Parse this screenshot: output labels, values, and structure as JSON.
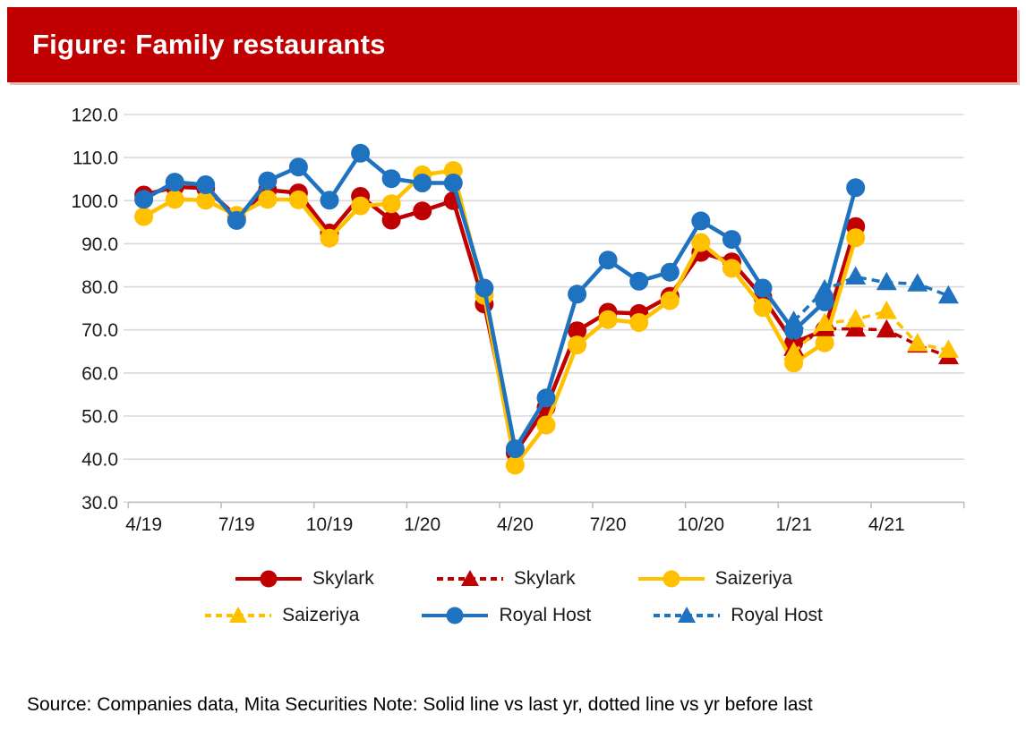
{
  "header": {
    "title": "Figure: Family restaurants"
  },
  "footer": {
    "source_note": "Source: Companies data, Mita Securities Note: Solid line vs last yr, dotted line vs yr before last"
  },
  "colors": {
    "banner_red": "#c00000",
    "skylark_red": "#c00000",
    "saizeriya_yellow": "#ffc000",
    "royal_host_blue": "#1f72bf",
    "gridline": "#d9d9d9",
    "axis": "#bfbfbf"
  },
  "chart_data": {
    "type": "line",
    "title": "Figure: Family restaurants",
    "x": [
      "4/19",
      "5/19",
      "6/19",
      "7/19",
      "8/19",
      "9/19",
      "10/19",
      "11/19",
      "12/19",
      "1/20",
      "2/20",
      "3/20",
      "4/20",
      "5/20",
      "6/20",
      "7/20",
      "8/20",
      "9/20",
      "10/20",
      "11/20",
      "12/20",
      "1/21",
      "2/21",
      "3/21",
      "4/21",
      "5/21",
      "6/21"
    ],
    "x_tick_label_positions": [
      0,
      3,
      6,
      9,
      12,
      15,
      18,
      21,
      24
    ],
    "x_tick_labels": [
      "4/19",
      "7/19",
      "10/19",
      "1/20",
      "4/20",
      "7/20",
      "10/20",
      "1/21",
      "4/21"
    ],
    "ylim": [
      30,
      120
    ],
    "y_ticks": [
      120,
      110,
      100,
      90,
      80,
      70,
      60,
      50,
      40,
      30
    ],
    "y_tick_labels": [
      "120.0",
      "110.0",
      "100.0",
      "90.0",
      "80.0",
      "70.0",
      "60.0",
      "50.0",
      "40.0",
      "30.0"
    ],
    "grid": "horizontal",
    "legend_position": "bottom",
    "note": "Solid line vs last yr, dotted line vs yr before last",
    "series": [
      {
        "name": "Skylark",
        "style": "solid",
        "marker": "circle",
        "color": "#c00000",
        "values": [
          101.3,
          103.2,
          102.9,
          96.3,
          102.5,
          101.8,
          92.5,
          101.0,
          95.5,
          97.6,
          100.0,
          76.0,
          41.5,
          52.0,
          69.8,
          74.1,
          73.8,
          77.8,
          88.0,
          85.8,
          77.6,
          67.0,
          70.0,
          94.0,
          null,
          null,
          null
        ]
      },
      {
        "name": "Saizeriya",
        "style": "solid",
        "marker": "circle",
        "color": "#ffc000",
        "values": [
          96.3,
          100.3,
          100.1,
          96.6,
          100.3,
          100.2,
          91.3,
          98.8,
          99.3,
          106.0,
          107.0,
          78.0,
          38.6,
          47.9,
          66.5,
          72.4,
          71.7,
          76.8,
          90.3,
          84.3,
          75.2,
          62.3,
          67.0,
          91.4,
          null,
          null,
          null
        ]
      },
      {
        "name": "Royal Host",
        "style": "solid",
        "marker": "circle",
        "color": "#1f72bf",
        "values": [
          100.3,
          104.3,
          103.7,
          95.4,
          104.6,
          107.8,
          100.1,
          111.0,
          105.1,
          104.1,
          104.1,
          79.7,
          42.4,
          54.2,
          78.3,
          86.2,
          81.3,
          83.4,
          95.3,
          91.0,
          79.7,
          69.8,
          76.5,
          103.0,
          null,
          null,
          null
        ]
      },
      {
        "name": "Skylark",
        "style": "dashed",
        "marker": "triangle",
        "color": "#c00000",
        "values": [
          null,
          null,
          null,
          null,
          null,
          null,
          null,
          null,
          null,
          null,
          null,
          null,
          null,
          null,
          null,
          null,
          null,
          null,
          null,
          null,
          null,
          65.7,
          70.3,
          70.2,
          70.0,
          66.5,
          63.8
        ]
      },
      {
        "name": "Saizeriya",
        "style": "dashed",
        "marker": "triangle",
        "color": "#ffc000",
        "values": [
          null,
          null,
          null,
          null,
          null,
          null,
          null,
          null,
          null,
          null,
          null,
          null,
          null,
          null,
          null,
          null,
          null,
          null,
          null,
          null,
          null,
          64.8,
          71.5,
          72.4,
          74.3,
          66.8,
          65.3
        ]
      },
      {
        "name": "Royal Host",
        "style": "dashed",
        "marker": "triangle",
        "color": "#1f72bf",
        "values": [
          null,
          null,
          null,
          null,
          null,
          null,
          null,
          null,
          null,
          null,
          null,
          null,
          null,
          null,
          null,
          null,
          null,
          null,
          null,
          null,
          null,
          72.0,
          79.3,
          82.3,
          81.0,
          80.7,
          77.9
        ]
      }
    ],
    "legend": {
      "rows": [
        [
          {
            "label": "Skylark",
            "series_index": 0
          },
          {
            "label": "Skylark",
            "series_index": 3
          },
          {
            "label": "Saizeriya",
            "series_index": 1
          }
        ],
        [
          {
            "label": "Saizeriya",
            "series_index": 4
          },
          {
            "label": "Royal Host",
            "series_index": 2
          },
          {
            "label": "Royal Host",
            "series_index": 5
          }
        ]
      ]
    }
  }
}
